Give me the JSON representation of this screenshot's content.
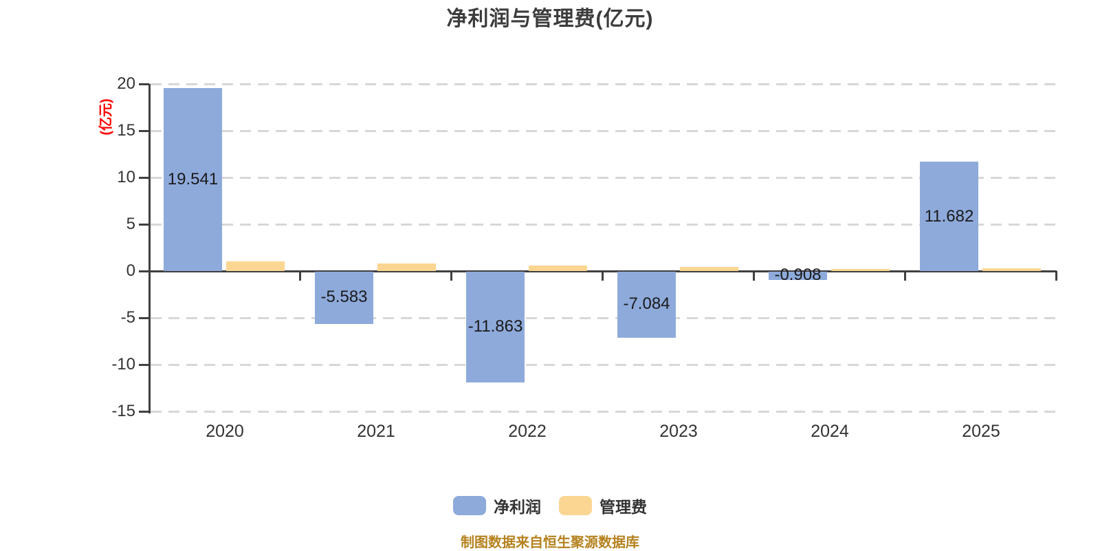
{
  "chart_data": {
    "type": "bar",
    "title": "净利润与管理费(亿元)",
    "ylabel": "(亿元)",
    "xlabel": "",
    "categories": [
      "2020",
      "2021",
      "2022",
      "2023",
      "2024",
      "2025"
    ],
    "series": [
      {
        "key": "net-profit",
        "name": "净利润",
        "color": "#8EAADB",
        "values": [
          19.541,
          -5.583,
          -11.863,
          -7.084,
          -0.908,
          11.682
        ],
        "labels": [
          "19.541",
          "-5.583",
          "-11.863",
          "-7.084",
          "-0.908",
          "11.682"
        ],
        "show_labels": true
      },
      {
        "key": "management-fee",
        "name": "管理费",
        "color": "#FBD692",
        "values": [
          1.0,
          0.8,
          0.6,
          0.45,
          0.2,
          0.3
        ],
        "values_estimated": true,
        "show_labels": false
      }
    ],
    "ylim": [
      -15,
      20
    ],
    "yticks": [
      20,
      15,
      10,
      5,
      0,
      -5,
      -10,
      -15
    ],
    "grid": "horizontal-dashed",
    "legend_position": "bottom"
  },
  "footer": {
    "source_text": "制图数据来自恒生聚源数据库"
  },
  "colors": {
    "net_profit_bar": "#8EAADB",
    "management_fee_bar": "#FBD692",
    "axis": "#404040",
    "gridline": "#D7D7D7",
    "title_text": "#3C3C3C",
    "axis_text": "#333333",
    "value_label_text": "#1A1A1A",
    "y_unit_label": "#FF0000",
    "source_text": "#B5821F"
  }
}
